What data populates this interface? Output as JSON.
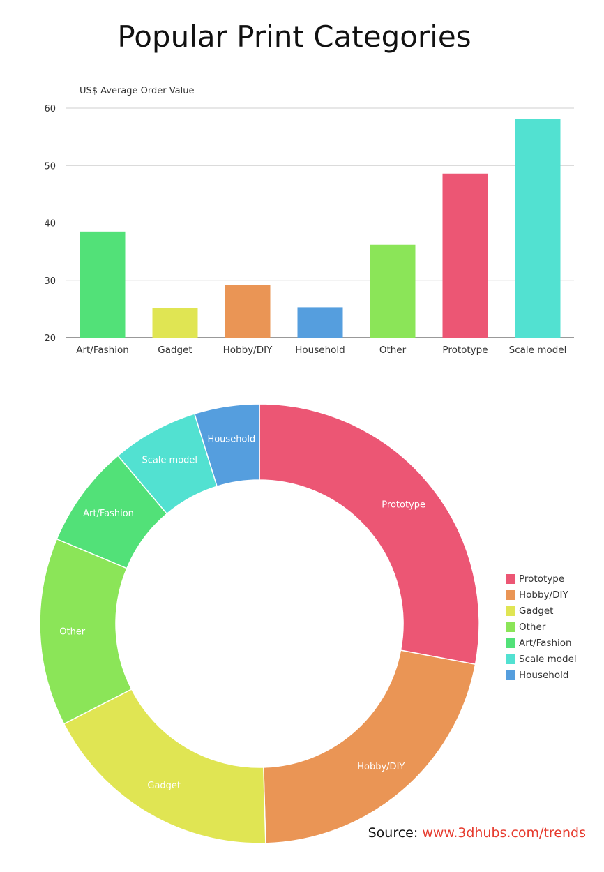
{
  "title": "Popular Print Categories",
  "source": {
    "label": "Source:",
    "link": "www.3dhubs.com/trends"
  },
  "chart_data": [
    {
      "type": "bar",
      "title": "",
      "ylabel": "US$ Average Order Value",
      "xlabel": "",
      "ylim": [
        20,
        60
      ],
      "yticks": [
        20,
        30,
        40,
        50,
        60
      ],
      "grid": true,
      "categories": [
        "Art/Fashion",
        "Gadget",
        "Hobby/DIY",
        "Household",
        "Other",
        "Prototype",
        "Scale model"
      ],
      "values": [
        38.5,
        25.2,
        29.2,
        25.3,
        36.2,
        48.6,
        58.1
      ],
      "colors": [
        "#52e178",
        "#e0e553",
        "#ea9555",
        "#559ede",
        "#8be558",
        "#ec5674",
        "#52e1d1"
      ]
    },
    {
      "type": "pie",
      "donut": true,
      "labels": [
        "Prototype",
        "Hobby/DIY",
        "Gadget",
        "Other",
        "Art/Fashion",
        "Scale model",
        "Household"
      ],
      "values": [
        28.1,
        21.7,
        18.0,
        13.9,
        7.6,
        6.4,
        4.8
      ],
      "colors": [
        "#ec5674",
        "#ea9555",
        "#e0e553",
        "#8be558",
        "#52e178",
        "#52e1d1",
        "#559ede"
      ],
      "legend_position": "right"
    }
  ]
}
